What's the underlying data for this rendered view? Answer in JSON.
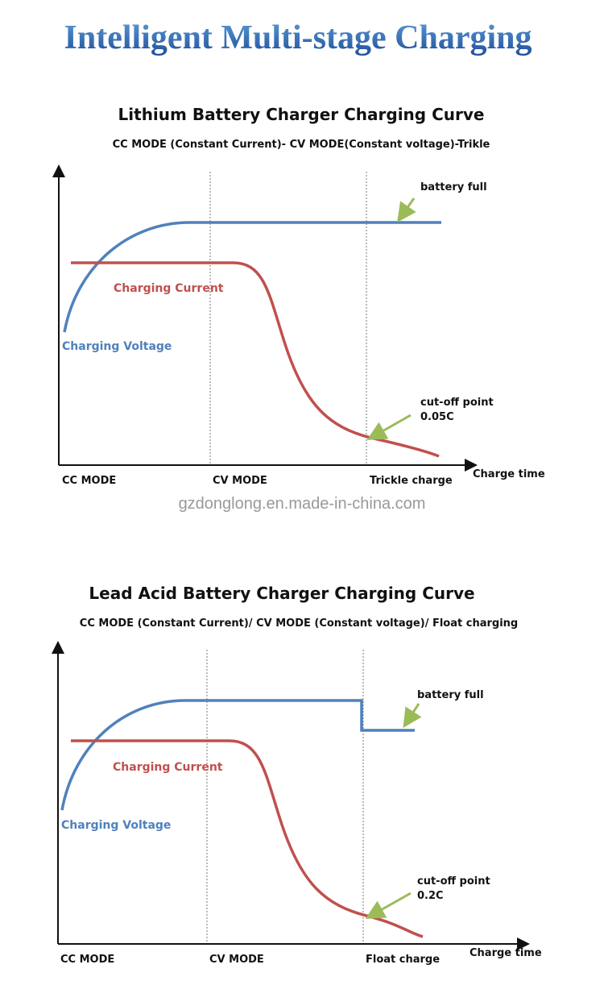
{
  "header": {
    "title": "Intelligent Multi-stage Charging"
  },
  "diagrams": [
    {
      "title": "Lithium Battery Charger Charging Curve",
      "subtitle": "CC MODE (Constant Current)- CV MODE(Constant voltage)-Trikle",
      "full_label": "battery full",
      "current_label": "Charging Current",
      "voltage_label": "Charging Voltage",
      "cutoff_label": [
        "cut-off point",
        "0.05C"
      ],
      "stages": [
        "CC MODE",
        "CV MODE",
        "Trickle charge"
      ],
      "x_label": "Charge time"
    },
    {
      "title": "Lead Acid Battery Charger Charging Curve",
      "subtitle": "CC MODE (Constant Current)/ CV MODE (Constant voltage)/ Float charging",
      "full_label": "battery full",
      "current_label": "Charging Current",
      "voltage_label": "Charging Voltage",
      "cutoff_label": [
        "cut-off point",
        "0.2C"
      ],
      "stages": [
        "CC MODE",
        "CV MODE",
        "Float charge"
      ],
      "x_label": "Charge time"
    }
  ],
  "source": "gzdonglong.en.made-in-china.com"
}
